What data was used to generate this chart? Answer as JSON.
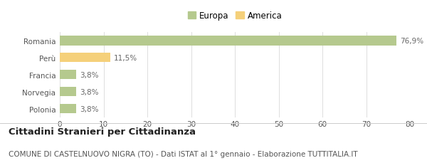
{
  "categories": [
    "Romania",
    "Perù",
    "Francia",
    "Norvegia",
    "Polonia"
  ],
  "values": [
    76.9,
    11.5,
    3.8,
    3.8,
    3.8
  ],
  "labels": [
    "76,9%",
    "11,5%",
    "3,8%",
    "3,8%",
    "3,8%"
  ],
  "colors": [
    "#b5c98e",
    "#f5d07a",
    "#b5c98e",
    "#b5c98e",
    "#b5c98e"
  ],
  "legend_items": [
    {
      "label": "Europa",
      "color": "#b5c98e"
    },
    {
      "label": "America",
      "color": "#f5d07a"
    }
  ],
  "xlim": [
    0,
    80
  ],
  "xticks": [
    0,
    10,
    20,
    30,
    40,
    50,
    60,
    70,
    80
  ],
  "title_bold": "Cittadini Stranieri per Cittadinanza",
  "subtitle": "COMUNE DI CASTELNUOVO NIGRA (TO) - Dati ISTAT al 1° gennaio - Elaborazione TUTTITALIA.IT",
  "background_color": "#ffffff",
  "bar_height": 0.55,
  "title_fontsize": 9.5,
  "subtitle_fontsize": 7.5,
  "label_fontsize": 7.5,
  "tick_fontsize": 7.5,
  "legend_fontsize": 8.5
}
